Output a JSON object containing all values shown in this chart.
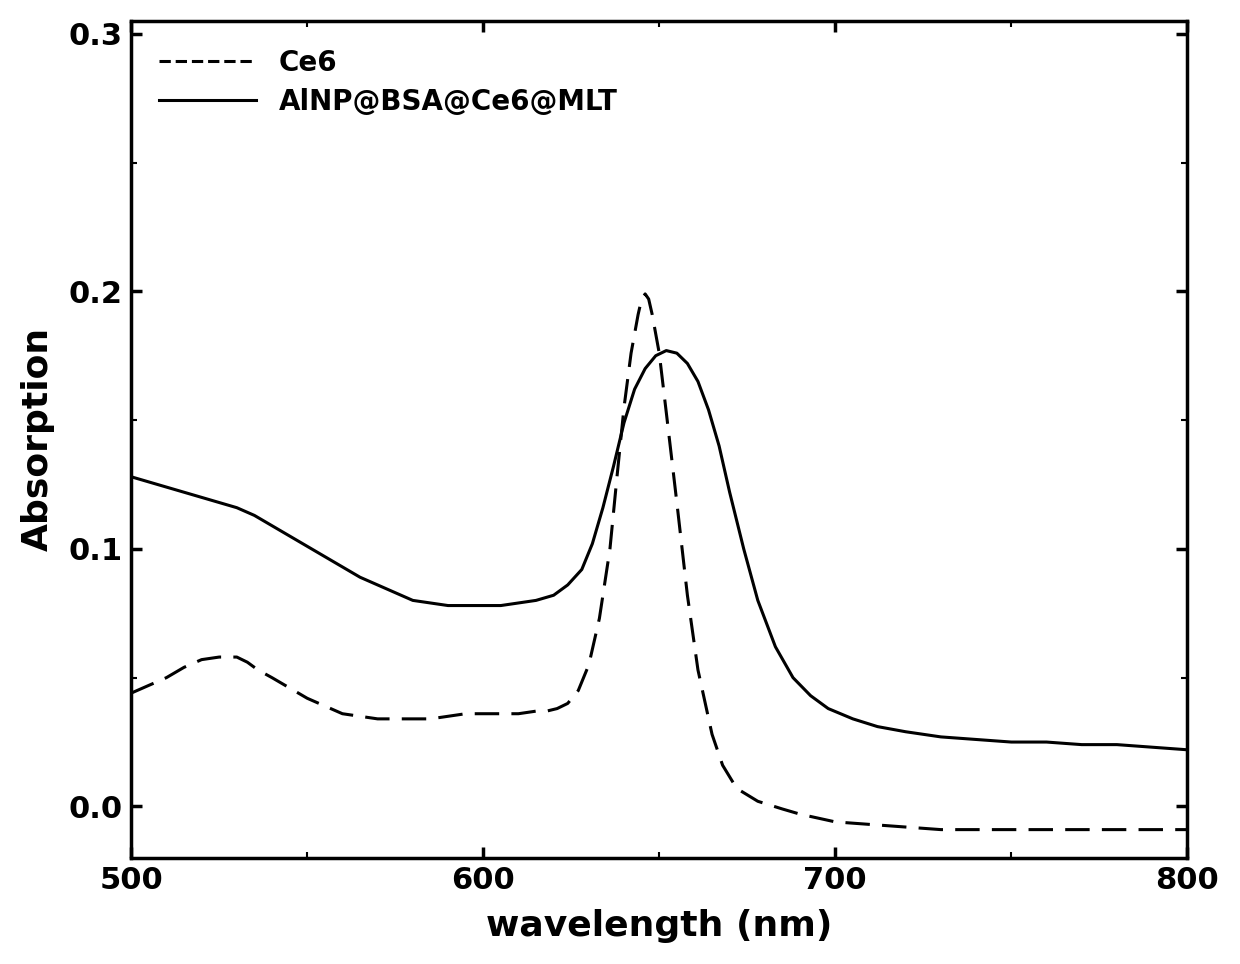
{
  "title": "",
  "xlabel": "wavelength (nm)",
  "ylabel": "Absorption",
  "xlim": [
    500,
    800
  ],
  "ylim": [
    -0.02,
    0.305
  ],
  "yticks": [
    0.0,
    0.1,
    0.2,
    0.3
  ],
  "xticks": [
    500,
    600,
    700,
    800
  ],
  "background_color": "#ffffff",
  "legend": [
    "Ce6",
    "AlNP@BSA@Ce6@MLT"
  ],
  "line_color": "#000000",
  "ce6_points": [
    [
      500,
      0.044
    ],
    [
      505,
      0.047
    ],
    [
      510,
      0.05
    ],
    [
      515,
      0.054
    ],
    [
      520,
      0.057
    ],
    [
      525,
      0.058
    ],
    [
      530,
      0.058
    ],
    [
      533,
      0.056
    ],
    [
      536,
      0.053
    ],
    [
      540,
      0.05
    ],
    [
      545,
      0.046
    ],
    [
      550,
      0.042
    ],
    [
      555,
      0.039
    ],
    [
      560,
      0.036
    ],
    [
      565,
      0.035
    ],
    [
      570,
      0.034
    ],
    [
      575,
      0.034
    ],
    [
      580,
      0.034
    ],
    [
      585,
      0.034
    ],
    [
      590,
      0.035
    ],
    [
      595,
      0.036
    ],
    [
      600,
      0.036
    ],
    [
      605,
      0.036
    ],
    [
      610,
      0.036
    ],
    [
      615,
      0.037
    ],
    [
      618,
      0.037
    ],
    [
      621,
      0.038
    ],
    [
      624,
      0.04
    ],
    [
      627,
      0.045
    ],
    [
      630,
      0.055
    ],
    [
      633,
      0.073
    ],
    [
      636,
      0.1
    ],
    [
      638,
      0.128
    ],
    [
      640,
      0.155
    ],
    [
      642,
      0.176
    ],
    [
      644,
      0.191
    ],
    [
      645,
      0.197
    ],
    [
      646,
      0.199
    ],
    [
      647,
      0.197
    ],
    [
      648,
      0.191
    ],
    [
      650,
      0.176
    ],
    [
      652,
      0.153
    ],
    [
      655,
      0.118
    ],
    [
      658,
      0.082
    ],
    [
      661,
      0.053
    ],
    [
      665,
      0.028
    ],
    [
      668,
      0.016
    ],
    [
      672,
      0.007
    ],
    [
      678,
      0.002
    ],
    [
      685,
      -0.001
    ],
    [
      690,
      -0.003
    ],
    [
      700,
      -0.006
    ],
    [
      710,
      -0.007
    ],
    [
      720,
      -0.008
    ],
    [
      730,
      -0.009
    ],
    [
      740,
      -0.009
    ],
    [
      750,
      -0.009
    ],
    [
      760,
      -0.009
    ],
    [
      770,
      -0.009
    ],
    [
      780,
      -0.009
    ],
    [
      790,
      -0.009
    ],
    [
      800,
      -0.009
    ]
  ],
  "ainp_points": [
    [
      500,
      0.128
    ],
    [
      505,
      0.126
    ],
    [
      510,
      0.124
    ],
    [
      515,
      0.122
    ],
    [
      520,
      0.12
    ],
    [
      525,
      0.118
    ],
    [
      530,
      0.116
    ],
    [
      535,
      0.113
    ],
    [
      540,
      0.109
    ],
    [
      545,
      0.105
    ],
    [
      550,
      0.101
    ],
    [
      555,
      0.097
    ],
    [
      560,
      0.093
    ],
    [
      565,
      0.089
    ],
    [
      570,
      0.086
    ],
    [
      575,
      0.083
    ],
    [
      580,
      0.08
    ],
    [
      585,
      0.079
    ],
    [
      590,
      0.078
    ],
    [
      595,
      0.078
    ],
    [
      600,
      0.078
    ],
    [
      605,
      0.078
    ],
    [
      610,
      0.079
    ],
    [
      615,
      0.08
    ],
    [
      620,
      0.082
    ],
    [
      624,
      0.086
    ],
    [
      628,
      0.092
    ],
    [
      631,
      0.102
    ],
    [
      634,
      0.116
    ],
    [
      637,
      0.132
    ],
    [
      640,
      0.149
    ],
    [
      643,
      0.162
    ],
    [
      646,
      0.17
    ],
    [
      649,
      0.175
    ],
    [
      652,
      0.177
    ],
    [
      655,
      0.176
    ],
    [
      658,
      0.172
    ],
    [
      661,
      0.165
    ],
    [
      664,
      0.154
    ],
    [
      667,
      0.14
    ],
    [
      670,
      0.122
    ],
    [
      674,
      0.1
    ],
    [
      678,
      0.08
    ],
    [
      683,
      0.062
    ],
    [
      688,
      0.05
    ],
    [
      693,
      0.043
    ],
    [
      698,
      0.038
    ],
    [
      705,
      0.034
    ],
    [
      712,
      0.031
    ],
    [
      720,
      0.029
    ],
    [
      730,
      0.027
    ],
    [
      740,
      0.026
    ],
    [
      750,
      0.025
    ],
    [
      760,
      0.025
    ],
    [
      770,
      0.024
    ],
    [
      780,
      0.024
    ],
    [
      790,
      0.023
    ],
    [
      800,
      0.022
    ]
  ]
}
